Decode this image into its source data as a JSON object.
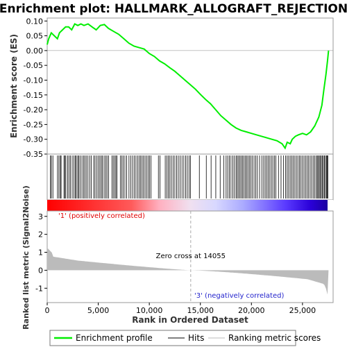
{
  "chart_data": {
    "type": "line",
    "title": "Enrichment plot: HALLMARK_ALLOGRAFT_REJECTION",
    "ylabel_top": "Enrichment score (ES)",
    "ylabel_bottom": "Ranked list metric (Signal2Noise)",
    "xlabel": "Rank in Ordered Dataset",
    "xlim": [
      0,
      28000
    ],
    "x_ticks": [
      0,
      5000,
      10000,
      15000,
      20000,
      25000
    ],
    "x_tick_labels": [
      "0",
      "5,000",
      "10,000",
      "15,000",
      "20,000",
      "25,000"
    ],
    "es_ylim": [
      -0.35,
      0.11
    ],
    "es_ticks": [
      0.1,
      0.05,
      0.0,
      -0.05,
      -0.1,
      -0.15,
      -0.2,
      -0.25,
      -0.3,
      -0.35
    ],
    "es_tick_labels": [
      "0.10",
      "0.05",
      "0.00",
      "-0.05",
      "-0.10",
      "-0.15",
      "-0.20",
      "-0.25",
      "-0.30",
      "-0.35"
    ],
    "metric_ylim": [
      -1.8,
      3.3
    ],
    "metric_ticks": [
      3,
      2,
      1,
      0,
      -1
    ],
    "metric_tick_labels": [
      "3",
      "2",
      "1",
      "0",
      "-1"
    ],
    "zero_cross": 14055,
    "zero_cross_label": "Zero cross at 14055",
    "pos_label": "'1' (positively correlated)",
    "neg_label": "'3' (negatively correlated)",
    "series": [
      {
        "name": "Enrichment profile",
        "color": "#00ee00",
        "x": [
          0,
          150,
          400,
          700,
          1000,
          1200,
          1500,
          1800,
          2100,
          2400,
          2700,
          3000,
          3300,
          3600,
          4000,
          4400,
          4800,
          5200,
          5600,
          6000,
          6500,
          7000,
          7500,
          8000,
          8500,
          9000,
          9500,
          10000,
          10500,
          11000,
          11500,
          12000,
          12500,
          13000,
          13500,
          14000,
          14500,
          15000,
          15500,
          16000,
          16500,
          17000,
          17500,
          18000,
          18500,
          19000,
          19500,
          20000,
          20500,
          21000,
          21500,
          22000,
          22500,
          23000,
          23300,
          23500,
          23800,
          24000,
          24300,
          24600,
          25000,
          25400,
          25800,
          26200,
          26600,
          26900,
          27100,
          27300,
          27450,
          27550
        ],
        "y": [
          0.02,
          0.04,
          0.06,
          0.05,
          0.04,
          0.06,
          0.07,
          0.08,
          0.08,
          0.07,
          0.09,
          0.085,
          0.09,
          0.085,
          0.09,
          0.08,
          0.07,
          0.085,
          0.088,
          0.075,
          0.065,
          0.055,
          0.04,
          0.025,
          0.015,
          0.01,
          0.005,
          -0.01,
          -0.02,
          -0.035,
          -0.045,
          -0.058,
          -0.07,
          -0.085,
          -0.1,
          -0.115,
          -0.13,
          -0.148,
          -0.165,
          -0.18,
          -0.2,
          -0.22,
          -0.235,
          -0.25,
          -0.262,
          -0.27,
          -0.275,
          -0.28,
          -0.285,
          -0.29,
          -0.295,
          -0.3,
          -0.305,
          -0.315,
          -0.33,
          -0.31,
          -0.315,
          -0.3,
          -0.29,
          -0.285,
          -0.28,
          -0.285,
          -0.275,
          -0.255,
          -0.225,
          -0.185,
          -0.13,
          -0.08,
          -0.035,
          0.0
        ]
      }
    ],
    "hits": [
      320,
      410,
      560,
      1010,
      1150,
      1290,
      1360,
      1640,
      1730,
      1830,
      2000,
      2140,
      2280,
      2450,
      2610,
      2750,
      2850,
      2990,
      3090,
      3220,
      3400,
      3550,
      3680,
      3820,
      3990,
      4160,
      4310,
      4560,
      4690,
      4870,
      5020,
      5160,
      5300,
      5420,
      5580,
      5730,
      5860,
      6020,
      6340,
      6470,
      6610,
      6730,
      6840,
      7160,
      7300,
      7450,
      7610,
      7780,
      8010,
      8180,
      8360,
      8520,
      8690,
      8850,
      9000,
      9150,
      9290,
      9430,
      9580,
      9730,
      9880,
      10020,
      10170,
      10890,
      11050,
      11560,
      11710,
      11860,
      12010,
      12160,
      12330,
      12500,
      12670,
      12840,
      13020,
      13200,
      13380,
      13560,
      13720,
      13890,
      14040,
      14900,
      15580,
      16050,
      16510,
      16940,
      17300,
      17520,
      17680,
      17840,
      18000,
      18180,
      18340,
      18500,
      18620,
      18750,
      18880,
      19010,
      19140,
      19270,
      19400,
      19530,
      19660,
      19800,
      19950,
      20100,
      20260,
      20420,
      20580,
      20800,
      21020,
      21200,
      21350,
      21500,
      21650,
      21800,
      21950,
      22100,
      22250,
      22400,
      22650,
      22900,
      23150,
      23350,
      23500,
      23650,
      23800,
      23950,
      24100,
      24250,
      24400,
      24550,
      24700,
      24850,
      25000,
      25150,
      25300,
      25450,
      25600,
      25750,
      25900,
      26050,
      26200,
      26350,
      26450,
      26550,
      26650,
      26750,
      26850,
      26950,
      27050,
      27150,
      27250,
      27350,
      27420,
      27480
    ]
  },
  "legend": {
    "items": [
      {
        "label": "Enrichment profile",
        "color": "#00ee00"
      },
      {
        "label": "Hits",
        "color": "#000000"
      },
      {
        "label": "Ranking metric scores",
        "color": "#bbbbbb"
      }
    ]
  }
}
